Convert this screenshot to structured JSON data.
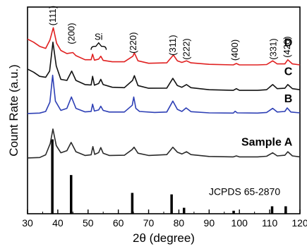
{
  "chart_data": {
    "type": "line",
    "xlabel": "2θ (degree)",
    "ylabel": "Count Rate (a.u.)",
    "xlim": [
      30,
      120
    ],
    "xticks": [
      30,
      40,
      50,
      60,
      70,
      80,
      90,
      100,
      110,
      120
    ],
    "yticks_labeled": false,
    "grid": false,
    "series": [
      {
        "name": "Sample A",
        "color": "#2a2a2a",
        "baseline": 0.27,
        "points": [
          [
            30,
            0.27
          ],
          [
            34,
            0.272
          ],
          [
            36,
            0.285
          ],
          [
            37.5,
            0.34
          ],
          [
            38.4,
            0.41
          ],
          [
            39.5,
            0.33
          ],
          [
            41,
            0.295
          ],
          [
            43,
            0.305
          ],
          [
            44.4,
            0.345
          ],
          [
            46,
            0.3
          ],
          [
            49,
            0.282
          ],
          [
            51,
            0.285
          ],
          [
            51.6,
            0.325
          ],
          [
            52.2,
            0.287
          ],
          [
            53.5,
            0.296
          ],
          [
            54.2,
            0.32
          ],
          [
            55,
            0.293
          ],
          [
            57,
            0.282
          ],
          [
            62,
            0.283
          ],
          [
            64.5,
            0.31
          ],
          [
            65.2,
            0.322
          ],
          [
            66.5,
            0.293
          ],
          [
            70,
            0.282
          ],
          [
            76,
            0.286
          ],
          [
            78,
            0.322
          ],
          [
            79.5,
            0.298
          ],
          [
            81,
            0.289
          ],
          [
            82.5,
            0.3
          ],
          [
            84,
            0.286
          ],
          [
            90,
            0.277
          ],
          [
            98,
            0.275
          ],
          [
            99,
            0.28
          ],
          [
            100,
            0.275
          ],
          [
            106,
            0.275
          ],
          [
            109,
            0.278
          ],
          [
            111,
            0.295
          ],
          [
            112.5,
            0.28
          ],
          [
            115,
            0.283
          ],
          [
            116,
            0.3
          ],
          [
            117.5,
            0.28
          ],
          [
            120,
            0.275
          ]
        ]
      },
      {
        "name": "B",
        "color": "#2d3fb5",
        "baseline": 0.485,
        "points": [
          [
            30,
            0.485
          ],
          [
            34,
            0.487
          ],
          [
            36,
            0.495
          ],
          [
            37.4,
            0.54
          ],
          [
            38.3,
            0.67
          ],
          [
            39.2,
            0.545
          ],
          [
            41,
            0.5
          ],
          [
            43,
            0.51
          ],
          [
            44.5,
            0.565
          ],
          [
            46,
            0.51
          ],
          [
            49,
            0.493
          ],
          [
            51,
            0.495
          ],
          [
            51.5,
            0.53
          ],
          [
            52.1,
            0.497
          ],
          [
            53.5,
            0.502
          ],
          [
            54.2,
            0.52
          ],
          [
            55,
            0.5
          ],
          [
            57,
            0.492
          ],
          [
            62,
            0.492
          ],
          [
            64.6,
            0.525
          ],
          [
            65.1,
            0.565
          ],
          [
            65.8,
            0.51
          ],
          [
            67,
            0.495
          ],
          [
            72,
            0.49
          ],
          [
            76,
            0.492
          ],
          [
            78,
            0.545
          ],
          [
            79.5,
            0.505
          ],
          [
            81,
            0.495
          ],
          [
            82.4,
            0.512
          ],
          [
            84,
            0.494
          ],
          [
            90,
            0.488
          ],
          [
            98,
            0.487
          ],
          [
            98.6,
            0.496
          ],
          [
            99.3,
            0.488
          ],
          [
            106,
            0.487
          ],
          [
            109,
            0.49
          ],
          [
            111,
            0.51
          ],
          [
            112.5,
            0.492
          ],
          [
            115,
            0.495
          ],
          [
            115.8,
            0.512
          ],
          [
            117,
            0.492
          ],
          [
            120,
            0.488
          ]
        ]
      },
      {
        "name": "C",
        "color": "#111111",
        "baseline": 0.6,
        "points": [
          [
            30,
            0.7
          ],
          [
            32,
            0.685
          ],
          [
            34,
            0.665
          ],
          [
            36,
            0.66
          ],
          [
            37.3,
            0.69
          ],
          [
            38.4,
            0.83
          ],
          [
            39.5,
            0.715
          ],
          [
            41,
            0.65
          ],
          [
            43,
            0.645
          ],
          [
            44.6,
            0.69
          ],
          [
            46,
            0.645
          ],
          [
            49,
            0.625
          ],
          [
            51,
            0.623
          ],
          [
            51.5,
            0.665
          ],
          [
            52.1,
            0.622
          ],
          [
            53.5,
            0.63
          ],
          [
            54.2,
            0.65
          ],
          [
            55,
            0.625
          ],
          [
            58,
            0.612
          ],
          [
            62,
            0.61
          ],
          [
            64.7,
            0.645
          ],
          [
            65.3,
            0.668
          ],
          [
            66.5,
            0.62
          ],
          [
            70,
            0.607
          ],
          [
            76,
            0.608
          ],
          [
            78,
            0.655
          ],
          [
            79.5,
            0.62
          ],
          [
            81,
            0.612
          ],
          [
            82.5,
            0.625
          ],
          [
            84,
            0.61
          ],
          [
            90,
            0.6
          ],
          [
            98,
            0.597
          ],
          [
            99,
            0.605
          ],
          [
            100,
            0.597
          ],
          [
            106,
            0.597
          ],
          [
            109,
            0.6
          ],
          [
            111,
            0.625
          ],
          [
            112.5,
            0.605
          ],
          [
            115,
            0.607
          ],
          [
            116,
            0.625
          ],
          [
            117.5,
            0.605
          ],
          [
            120,
            0.6
          ]
        ]
      },
      {
        "name": "D",
        "color": "#e02020",
        "baseline": 0.72,
        "points": [
          [
            30,
            0.845
          ],
          [
            32,
            0.83
          ],
          [
            34,
            0.81
          ],
          [
            36,
            0.8
          ],
          [
            37.4,
            0.84
          ],
          [
            38.5,
            0.9
          ],
          [
            39.6,
            0.825
          ],
          [
            41,
            0.79
          ],
          [
            43,
            0.775
          ],
          [
            45,
            0.78
          ],
          [
            46,
            0.765
          ],
          [
            49,
            0.745
          ],
          [
            51,
            0.745
          ],
          [
            51.5,
            0.772
          ],
          [
            52.1,
            0.743
          ],
          [
            53.5,
            0.748
          ],
          [
            54.2,
            0.762
          ],
          [
            55,
            0.742
          ],
          [
            58,
            0.735
          ],
          [
            62,
            0.735
          ],
          [
            64.8,
            0.762
          ],
          [
            65.3,
            0.778
          ],
          [
            66.5,
            0.74
          ],
          [
            70,
            0.728
          ],
          [
            76,
            0.73
          ],
          [
            78.2,
            0.768
          ],
          [
            79.5,
            0.74
          ],
          [
            81,
            0.732
          ],
          [
            82.5,
            0.74
          ],
          [
            84,
            0.73
          ],
          [
            90,
            0.723
          ],
          [
            98,
            0.72
          ],
          [
            99,
            0.727
          ],
          [
            100,
            0.72
          ],
          [
            106,
            0.72
          ],
          [
            109,
            0.722
          ],
          [
            111,
            0.74
          ],
          [
            112.5,
            0.725
          ],
          [
            115,
            0.725
          ],
          [
            116,
            0.745
          ],
          [
            117.5,
            0.725
          ],
          [
            120,
            0.72
          ]
        ]
      }
    ],
    "reference": {
      "name": "JCPDS 65-2870",
      "color": "#000000",
      "sticks": [
        [
          38.2,
          1.0
        ],
        [
          44.4,
          0.52
        ],
        [
          64.6,
          0.28
        ],
        [
          77.6,
          0.26
        ],
        [
          81.7,
          0.08
        ],
        [
          98.1,
          0.04
        ],
        [
          110.8,
          0.1
        ],
        [
          115.3,
          0.1
        ]
      ]
    },
    "annotations": {
      "hkl": [
        {
          "text": "(111)",
          "x": 38.4
        },
        {
          "text": "(200)",
          "x": 44.6
        },
        {
          "text": "(220)",
          "x": 65.0
        },
        {
          "text": "(311)",
          "x": 78.0
        },
        {
          "text": "(222)",
          "x": 82.6
        },
        {
          "text": "(400)",
          "x": 98.6
        },
        {
          "text": "(331)",
          "x": 111.2
        },
        {
          "text": "(420)",
          "x": 115.8
        }
      ],
      "si": {
        "text": "Si",
        "x_from": 51.0,
        "x_to": 56.0
      }
    },
    "sample_labels": [
      {
        "series": "D",
        "text": "D"
      },
      {
        "series": "C",
        "text": "C"
      },
      {
        "series": "B",
        "text": "B"
      },
      {
        "series": "Sample A",
        "text": "Sample A"
      }
    ]
  }
}
